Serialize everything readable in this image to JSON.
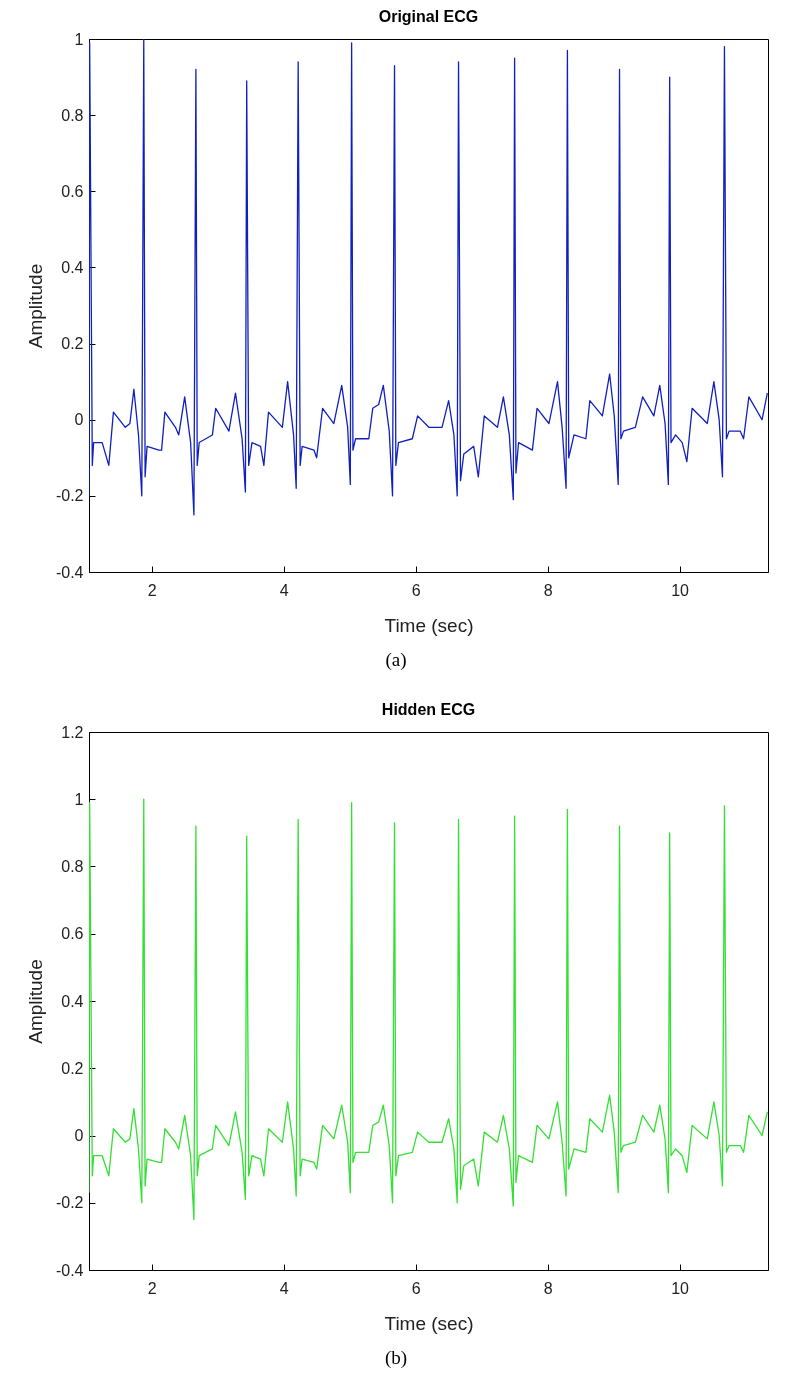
{
  "chart_data": [
    {
      "type": "line",
      "title": "Original ECG",
      "xlabel": "Time (sec)",
      "ylabel": "Amplitude",
      "annotations": [
        "(a)"
      ],
      "x": [
        1.05,
        1.06,
        1.1,
        1.12,
        1.25,
        1.35,
        1.42,
        1.6,
        1.67,
        1.73,
        1.8,
        1.85,
        1.88,
        1.9,
        1.93,
        2.11,
        2.15,
        2.2,
        2.36,
        2.41,
        2.5,
        2.59,
        2.64,
        2.67,
        2.69,
        2.72,
        2.92,
        2.97,
        3.17,
        3.27,
        3.37,
        3.42,
        3.44,
        3.47,
        3.52,
        3.65,
        3.7,
        3.77,
        3.98,
        4.06,
        4.15,
        4.19,
        4.22,
        4.25,
        4.28,
        4.46,
        4.5,
        4.59,
        4.76,
        4.88,
        4.97,
        5.01,
        5.03,
        5.05,
        5.09,
        5.29,
        5.35,
        5.44,
        5.51,
        5.6,
        5.65,
        5.68,
        5.7,
        5.74,
        5.95,
        6.03,
        6.2,
        6.4,
        6.5,
        6.58,
        6.63,
        6.65,
        6.68,
        6.73,
        6.88,
        6.95,
        7.04,
        7.24,
        7.33,
        7.42,
        7.48,
        7.5,
        7.52,
        7.56,
        7.77,
        7.84,
        8.02,
        8.15,
        8.22,
        8.28,
        8.3,
        8.32,
        8.4,
        8.58,
        8.64,
        8.83,
        8.94,
        9.01,
        9.07,
        9.09,
        9.11,
        9.15,
        9.33,
        9.44,
        9.61,
        9.7,
        9.78,
        9.83,
        9.85,
        9.87,
        9.94,
        10.04,
        10.11,
        10.19,
        10.42,
        10.52,
        10.6,
        10.65,
        10.68,
        10.71,
        10.75,
        10.92,
        10.97,
        11.05,
        11.25,
        11.33
      ],
      "series": [
        {
          "color": "#1020c0",
          "values": [
            -0.2,
            0.99,
            -0.12,
            -0.06,
            -0.06,
            -0.12,
            0.02,
            -0.02,
            -0.01,
            0.08,
            -0.04,
            -0.2,
            1.0,
            -0.15,
            -0.07,
            -0.08,
            -0.08,
            0.02,
            -0.02,
            -0.04,
            0.06,
            -0.06,
            -0.25,
            0.92,
            -0.12,
            -0.06,
            -0.04,
            0.03,
            -0.03,
            0.07,
            -0.05,
            -0.19,
            0.89,
            -0.12,
            -0.06,
            -0.07,
            -0.12,
            0.02,
            -0.02,
            0.1,
            -0.04,
            -0.18,
            0.94,
            -0.12,
            -0.07,
            -0.08,
            -0.1,
            0.03,
            -0.01,
            0.09,
            -0.02,
            -0.17,
            0.99,
            -0.08,
            -0.05,
            -0.05,
            0.03,
            0.04,
            0.09,
            -0.03,
            -0.2,
            0.93,
            -0.12,
            -0.06,
            -0.05,
            0.01,
            -0.02,
            -0.02,
            0.05,
            -0.04,
            -0.2,
            0.94,
            -0.16,
            -0.09,
            -0.07,
            -0.15,
            0.01,
            -0.02,
            0.06,
            -0.04,
            -0.21,
            0.95,
            -0.14,
            -0.06,
            -0.08,
            0.03,
            -0.01,
            0.1,
            -0.02,
            -0.18,
            0.97,
            -0.1,
            -0.04,
            -0.05,
            0.05,
            0.01,
            0.12,
            0.01,
            -0.17,
            0.92,
            -0.05,
            -0.03,
            -0.02,
            0.06,
            0.01,
            0.09,
            -0.01,
            -0.17,
            0.9,
            -0.06,
            -0.04,
            -0.06,
            -0.11,
            0.03,
            -0.01,
            0.1,
            0.0,
            -0.15,
            0.98,
            -0.05,
            -0.03,
            -0.03,
            -0.05,
            0.06,
            0.0,
            0.07
          ]
        }
      ],
      "xlim": [
        1.05,
        11.34
      ],
      "xticks": [
        2,
        4,
        6,
        8,
        10
      ],
      "ylim": [
        -0.4,
        1
      ],
      "yticks": [
        -0.4,
        -0.2,
        0,
        0.2,
        0.4,
        0.6,
        0.8,
        1
      ],
      "grid": false
    },
    {
      "type": "line",
      "title": "Hidden ECG",
      "xlabel": "Time (sec)",
      "ylabel": "Amplitude",
      "annotations": [
        "(b)"
      ],
      "x": [
        1.05,
        1.06,
        1.1,
        1.12,
        1.25,
        1.35,
        1.42,
        1.6,
        1.67,
        1.73,
        1.8,
        1.85,
        1.88,
        1.9,
        1.93,
        2.11,
        2.15,
        2.2,
        2.36,
        2.41,
        2.5,
        2.59,
        2.64,
        2.67,
        2.69,
        2.72,
        2.92,
        2.97,
        3.17,
        3.27,
        3.37,
        3.42,
        3.44,
        3.47,
        3.52,
        3.65,
        3.7,
        3.77,
        3.98,
        4.06,
        4.15,
        4.19,
        4.22,
        4.25,
        4.28,
        4.46,
        4.5,
        4.59,
        4.76,
        4.88,
        4.97,
        5.01,
        5.03,
        5.05,
        5.09,
        5.29,
        5.35,
        5.44,
        5.51,
        5.6,
        5.65,
        5.68,
        5.7,
        5.74,
        5.95,
        6.03,
        6.2,
        6.4,
        6.5,
        6.58,
        6.63,
        6.65,
        6.68,
        6.73,
        6.88,
        6.95,
        7.04,
        7.24,
        7.33,
        7.42,
        7.48,
        7.5,
        7.52,
        7.56,
        7.77,
        7.84,
        8.02,
        8.15,
        8.22,
        8.28,
        8.3,
        8.32,
        8.4,
        8.58,
        8.64,
        8.83,
        8.94,
        9.01,
        9.07,
        9.09,
        9.11,
        9.15,
        9.33,
        9.44,
        9.61,
        9.7,
        9.78,
        9.83,
        9.85,
        9.87,
        9.94,
        10.04,
        10.11,
        10.19,
        10.42,
        10.52,
        10.6,
        10.65,
        10.68,
        10.71,
        10.75,
        10.92,
        10.97,
        11.05,
        11.25,
        11.33
      ],
      "series": [
        {
          "color": "#33e033",
          "values": [
            -0.17,
            0.99,
            -0.12,
            -0.06,
            -0.06,
            -0.12,
            0.02,
            -0.02,
            -0.01,
            0.08,
            -0.04,
            -0.2,
            1.0,
            -0.15,
            -0.07,
            -0.08,
            -0.08,
            0.02,
            -0.02,
            -0.04,
            0.06,
            -0.06,
            -0.25,
            0.92,
            -0.12,
            -0.06,
            -0.04,
            0.03,
            -0.03,
            0.07,
            -0.05,
            -0.19,
            0.89,
            -0.12,
            -0.06,
            -0.07,
            -0.12,
            0.02,
            -0.02,
            0.1,
            -0.04,
            -0.18,
            0.94,
            -0.12,
            -0.07,
            -0.08,
            -0.1,
            0.03,
            -0.01,
            0.09,
            -0.02,
            -0.17,
            0.99,
            -0.08,
            -0.05,
            -0.05,
            0.03,
            0.04,
            0.09,
            -0.03,
            -0.2,
            0.93,
            -0.12,
            -0.06,
            -0.05,
            0.01,
            -0.02,
            -0.02,
            0.05,
            -0.04,
            -0.2,
            0.94,
            -0.16,
            -0.09,
            -0.07,
            -0.15,
            0.01,
            -0.02,
            0.06,
            -0.04,
            -0.21,
            0.95,
            -0.14,
            -0.06,
            -0.08,
            0.03,
            -0.01,
            0.1,
            -0.02,
            -0.18,
            0.97,
            -0.1,
            -0.04,
            -0.05,
            0.05,
            0.01,
            0.12,
            0.01,
            -0.17,
            0.92,
            -0.05,
            -0.03,
            -0.02,
            0.06,
            0.01,
            0.09,
            -0.01,
            -0.17,
            0.9,
            -0.06,
            -0.04,
            -0.06,
            -0.11,
            0.03,
            -0.01,
            0.1,
            0.0,
            -0.15,
            0.98,
            -0.05,
            -0.03,
            -0.03,
            -0.05,
            0.06,
            0.0,
            0.07
          ]
        }
      ],
      "xlim": [
        1.05,
        11.34
      ],
      "xticks": [
        2,
        4,
        6,
        8,
        10
      ],
      "ylim": [
        -0.4,
        1.2
      ],
      "yticks": [
        -0.4,
        -0.2,
        0,
        0.2,
        0.4,
        0.6,
        0.8,
        1,
        1.2
      ],
      "grid": false
    }
  ]
}
